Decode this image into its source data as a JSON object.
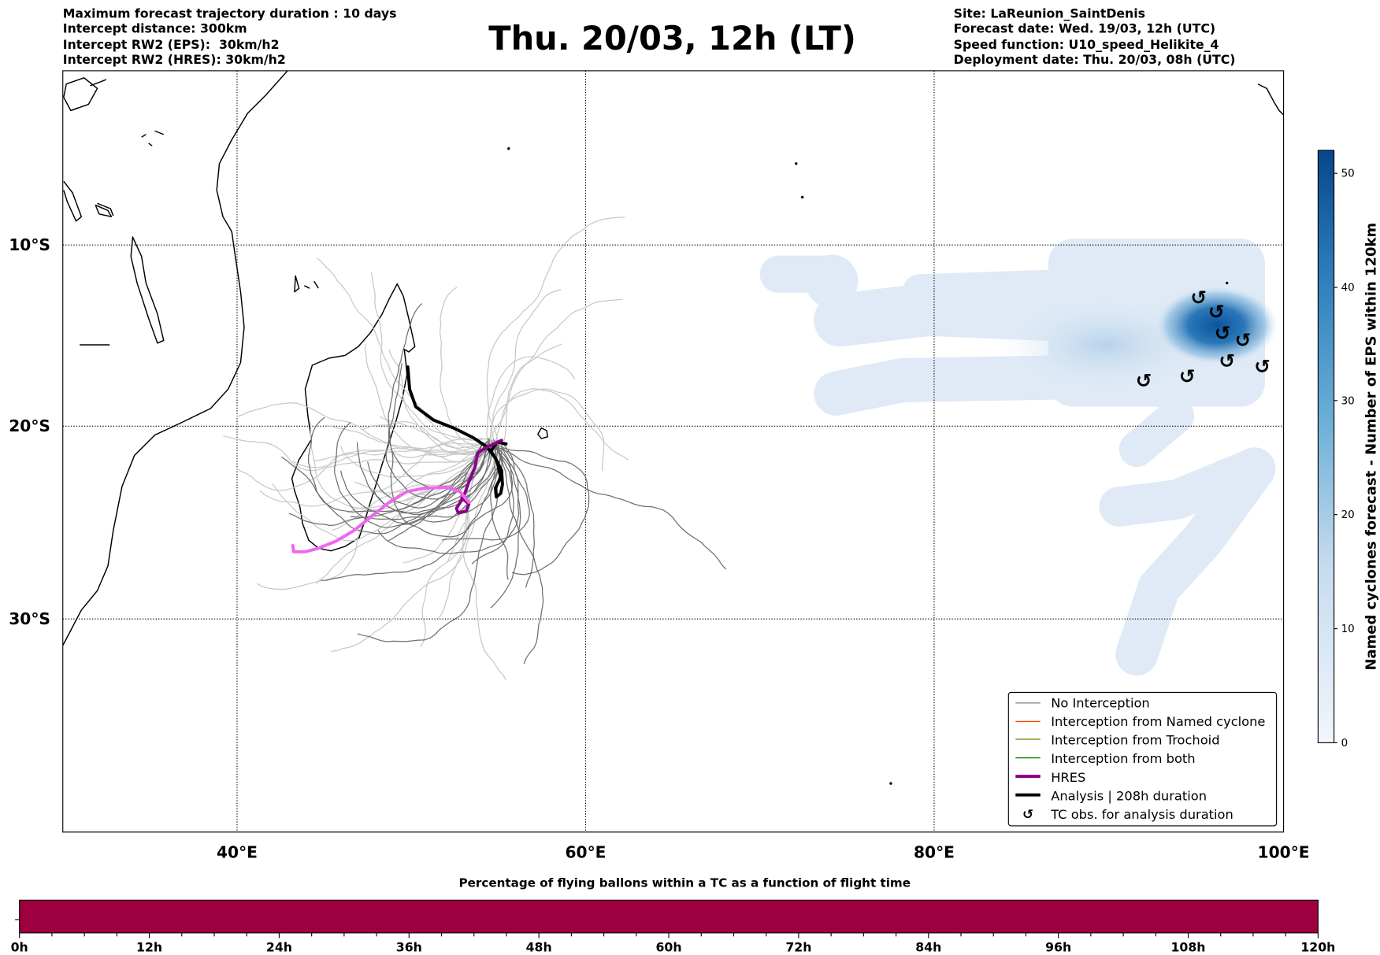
{
  "header": {
    "left": [
      "Maximum forecast trajectory duration : 10 days",
      "Intercept distance: 300km",
      "Intercept RW2 (EPS):  30km/h2",
      "Intercept RW2 (HRES): 30km/h2"
    ],
    "title": "Thu. 20/03, 12h (LT)",
    "right": [
      "Site: LaReunion_SaintDenis",
      "Forecast date: Wed. 19/03, 12h (UTC)",
      "Speed function: U10_speed_Helikite_4",
      "Deployment date: Thu. 20/03, 08h (UTC)"
    ]
  },
  "map": {
    "lat_labels": [
      "10°S",
      "20°S",
      "30°S"
    ],
    "lon_labels": [
      "40°E",
      "60°E",
      "80°E",
      "100°E"
    ],
    "tc_marker": "↺"
  },
  "legend": {
    "items": [
      {
        "label": "No Interception",
        "color": "#808080"
      },
      {
        "label": "Interception from Named cyclone",
        "color": "#ff4500"
      },
      {
        "label": "Interception from Trochoid",
        "color": "#808000"
      },
      {
        "label": "Interception from both",
        "color": "#008000"
      },
      {
        "label": "HRES",
        "color": "#8b008b"
      },
      {
        "label": "Analysis | 208h duration",
        "color": "#000000"
      },
      {
        "label": "TC obs. for analysis duration",
        "color": "#000000"
      }
    ]
  },
  "colorbar": {
    "label": "Named cyclones forecast - Number of EPS within 120km",
    "ticks": [
      "0",
      "10",
      "20",
      "30",
      "40",
      "50"
    ],
    "range": [
      0,
      52
    ],
    "color_low": "#f0f6fc",
    "color_high": "#08468c"
  },
  "bottom": {
    "title": "Percentage of flying ballons within a TC as a function of flight time",
    "ticks": [
      "0h",
      "12h",
      "24h",
      "36h",
      "48h",
      "60h",
      "72h",
      "84h",
      "96h",
      "108h",
      "120h"
    ],
    "bar_color": "#9e003f",
    "percentage_fill": 1.0
  }
}
